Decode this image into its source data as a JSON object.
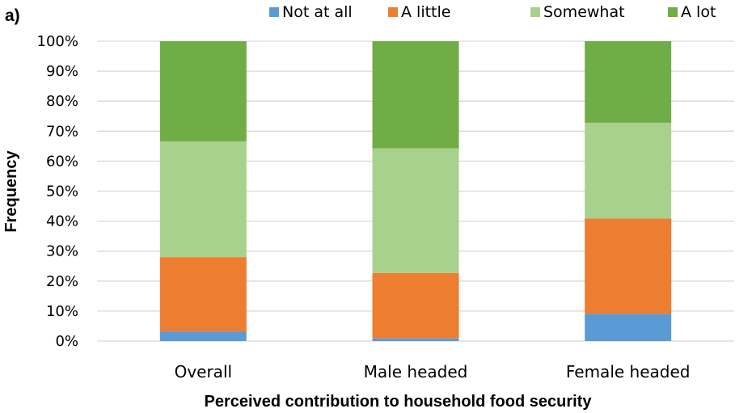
{
  "panel_label": "a)",
  "chart_data": {
    "type": "bar",
    "stacked": true,
    "categories": [
      "Overall",
      "Male headed",
      "Female headed"
    ],
    "series": [
      {
        "name": "Not at all",
        "color": "#5B9BD5",
        "values": [
          3.2,
          0.9,
          9.1
        ]
      },
      {
        "name": "A little",
        "color": "#ED7D31",
        "values": [
          24.8,
          21.8,
          31.8
        ]
      },
      {
        "name": "Somewhat",
        "color": "#A9D18E",
        "values": [
          38.6,
          41.6,
          31.9
        ]
      },
      {
        "name": "A lot",
        "color": "#70AD47",
        "values": [
          33.4,
          35.7,
          27.2
        ]
      }
    ],
    "yticks": [
      "0%",
      "10%",
      "20%",
      "30%",
      "40%",
      "50%",
      "60%",
      "70%",
      "80%",
      "90%",
      "100%"
    ],
    "ylim": [
      0,
      100
    ],
    "xlabel": "Perceived contribution to household food security",
    "ylabel": "Frequency",
    "legend_position": "top",
    "grid": true
  }
}
